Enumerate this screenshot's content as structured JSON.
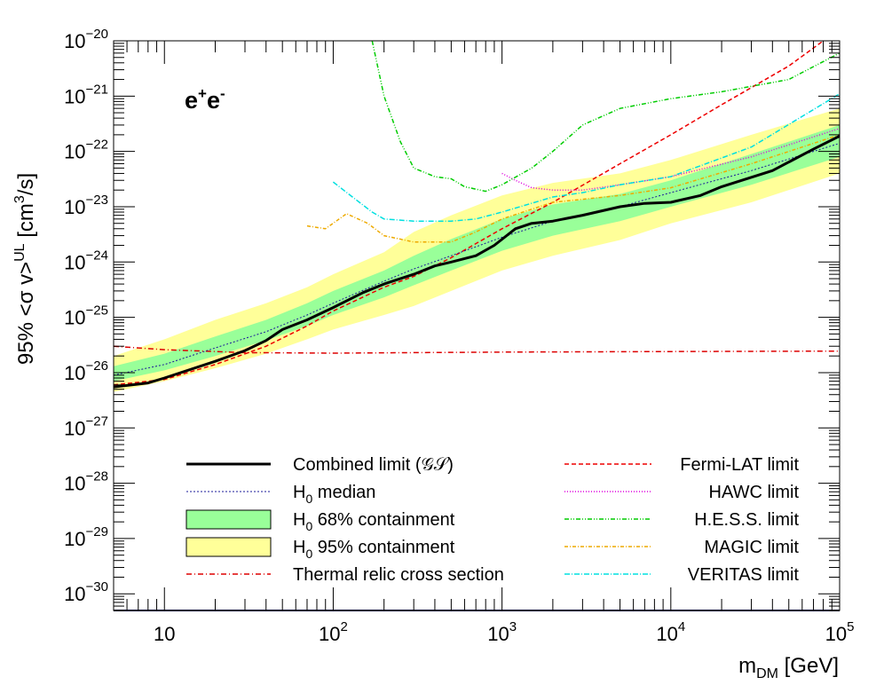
{
  "chart_data": {
    "type": "line",
    "channel_label": {
      "base": "e",
      "sup1": "+",
      "base2": "e",
      "sup2": "-"
    },
    "xlabel": {
      "main": "m",
      "sub": "DM",
      "unit": " [GeV]"
    },
    "ylabel": {
      "prefix": "95% <σ v>",
      "sup": "UL",
      "unit": " [cm",
      "unit_sup": "3",
      "unit_end": "/s]"
    },
    "x_scale": "log",
    "y_scale": "log",
    "xlim": [
      5,
      100000
    ],
    "ylim": [
      5e-31,
      1e-20
    ],
    "x_ticks": [
      {
        "value": 10,
        "base": "10",
        "exp": ""
      },
      {
        "value": 100,
        "base": "10",
        "exp": "2"
      },
      {
        "value": 1000,
        "base": "10",
        "exp": "3"
      },
      {
        "value": 10000,
        "base": "10",
        "exp": "4"
      },
      {
        "value": 100000,
        "base": "10",
        "exp": "5"
      }
    ],
    "y_ticks": [
      {
        "value": 1e-20,
        "base": "10",
        "exp": "−20"
      },
      {
        "value": 1e-21,
        "base": "10",
        "exp": "−21"
      },
      {
        "value": 1e-22,
        "base": "10",
        "exp": "−22"
      },
      {
        "value": 1e-23,
        "base": "10",
        "exp": "−23"
      },
      {
        "value": 1e-24,
        "base": "10",
        "exp": "−24"
      },
      {
        "value": 1e-25,
        "base": "10",
        "exp": "−25"
      },
      {
        "value": 1e-26,
        "base": "10",
        "exp": "−26"
      },
      {
        "value": 1e-27,
        "base": "10",
        "exp": "−27"
      },
      {
        "value": 1e-28,
        "base": "10",
        "exp": "−28"
      },
      {
        "value": 1e-29,
        "base": "10",
        "exp": "−29"
      },
      {
        "value": 1e-30,
        "base": "10",
        "exp": "−30"
      }
    ],
    "bands": [
      {
        "name": "H0 95% containment",
        "color": "#ffff99",
        "x": [
          5,
          10,
          20,
          40,
          70,
          100,
          200,
          300,
          500,
          1000,
          2000,
          5000,
          10000,
          30000,
          100000
        ],
        "lower": [
          4.5e-27,
          7e-27,
          1.2e-26,
          2.2e-26,
          4e-26,
          6e-26,
          1.1e-25,
          1.6e-25,
          3e-25,
          7e-25,
          1.3e-24,
          2.5e-24,
          5e-24,
          1.2e-23,
          4e-23
        ],
        "upper": [
          2e-26,
          4e-26,
          9e-26,
          1.8e-25,
          3.5e-25,
          6e-25,
          1.5e-24,
          3.5e-24,
          7e-24,
          1.6e-23,
          2.7e-23,
          4e-23,
          7e-23,
          2e-22,
          6e-22
        ]
      },
      {
        "name": "H0 68% containment",
        "color": "#99ff99",
        "x": [
          5,
          10,
          20,
          40,
          70,
          100,
          200,
          300,
          500,
          1000,
          2000,
          5000,
          10000,
          30000,
          100000
        ],
        "lower": [
          7e-27,
          1.1e-26,
          2e-26,
          3.8e-26,
          7e-26,
          1.1e-25,
          2.3e-25,
          3.8e-25,
          7e-25,
          1.6e-24,
          3e-24,
          5.5e-24,
          1e-23,
          2.5e-23,
          8e-23
        ],
        "upper": [
          1.3e-26,
          2.2e-26,
          4.5e-26,
          9e-26,
          1.8e-25,
          3e-25,
          7e-25,
          1.3e-24,
          2.6e-24,
          6e-24,
          1.1e-23,
          1.7e-23,
          3e-23,
          9e-23,
          3e-22
        ]
      }
    ],
    "series": [
      {
        "name": "Thermal relic cross section",
        "color": "#dd0000",
        "dash": "6,3,1,3",
        "width": 1.5,
        "x": [
          5,
          10,
          30,
          100,
          1000,
          10000,
          100000
        ],
        "y": [
          3e-26,
          2.6e-26,
          2.3e-26,
          2.25e-26,
          2.35e-26,
          2.4e-26,
          2.45e-26
        ]
      },
      {
        "name": "Fermi-LAT limit",
        "color": "#ee0000",
        "dash": "5,3",
        "width": 1.5,
        "x": [
          5,
          10,
          20,
          40,
          70,
          100,
          200,
          300,
          500,
          1000,
          2000,
          5000,
          10000,
          20000,
          50000,
          80000
        ],
        "y": [
          6e-27,
          7.5e-27,
          1.4e-26,
          3e-26,
          7e-26,
          1.3e-25,
          3.5e-25,
          5.5e-25,
          1.2e-24,
          4e-24,
          1.2e-23,
          6e-23,
          2e-22,
          7e-22,
          3.5e-21,
          1e-20
        ]
      },
      {
        "name": "HAWC limit",
        "color": "#dd00dd",
        "dash": "1,2",
        "width": 1.5,
        "x": [
          1000,
          1200,
          1500,
          2000,
          3000,
          5000,
          10000,
          30000,
          100000
        ],
        "y": [
          4e-23,
          3e-23,
          2.2e-23,
          2e-23,
          2e-23,
          2.5e-23,
          3.5e-23,
          8e-23,
          2.6e-22
        ]
      },
      {
        "name": "H.E.S.S. limit",
        "color": "#00cc00",
        "dash": "5,2,1,2,1,2",
        "width": 1.5,
        "x": [
          170,
          200,
          250,
          300,
          400,
          500,
          600,
          800,
          1000,
          1500,
          2000,
          3000,
          5000,
          10000,
          20000,
          50000,
          100000
        ],
        "y": [
          1e-20,
          1e-21,
          1.5e-22,
          5e-23,
          3.5e-23,
          3.2e-23,
          2.3e-23,
          1.9e-23,
          2.5e-23,
          5e-23,
          1e-22,
          3e-22,
          6e-22,
          9e-22,
          1.2e-21,
          2e-21,
          6e-21
        ]
      },
      {
        "name": "MAGIC limit",
        "color": "#eeaa00",
        "dash": "4,2,1,2",
        "width": 1.5,
        "x": [
          70,
          90,
          120,
          160,
          200,
          300,
          500,
          700,
          1000,
          2000,
          5000,
          10000,
          30000,
          100000
        ],
        "y": [
          4.5e-24,
          4e-24,
          7.5e-24,
          5e-24,
          3e-24,
          2.3e-24,
          2.3e-24,
          3.5e-24,
          6e-24,
          1.2e-23,
          1.6e-23,
          2.2e-23,
          6e-23,
          2e-22
        ]
      },
      {
        "name": "VERITAS limit",
        "color": "#00e0e0",
        "dash": "6,2,1,2",
        "width": 1.5,
        "x": [
          100,
          130,
          170,
          200,
          300,
          500,
          700,
          1000,
          2000,
          3000,
          5000,
          10000,
          30000,
          100000
        ],
        "y": [
          2.8e-23,
          1.5e-23,
          8e-24,
          6e-24,
          5.5e-24,
          5.5e-24,
          6e-24,
          8e-24,
          1.5e-23,
          1.8e-23,
          2.5e-23,
          3.5e-23,
          1.2e-22,
          1.1e-21
        ]
      },
      {
        "name": "H0 median",
        "color": "#1a1a99",
        "dash": "2,2",
        "width": 1,
        "x": [
          5,
          10,
          20,
          40,
          70,
          100,
          200,
          300,
          500,
          1000,
          2000,
          5000,
          10000,
          30000,
          100000
        ],
        "y": [
          9e-27,
          1.4e-26,
          2.8e-26,
          5.5e-26,
          1.1e-25,
          1.8e-25,
          4.5e-25,
          7.5e-25,
          1.3e-24,
          2.8e-24,
          5.5e-24,
          1e-23,
          1.8e-23,
          4.5e-23,
          1.4e-22
        ]
      },
      {
        "name": "Combined limit",
        "color": "#000000",
        "dash": "",
        "width": 3,
        "x": [
          5,
          8,
          10,
          20,
          30,
          40,
          50,
          70,
          100,
          150,
          200,
          300,
          400,
          500,
          700,
          900,
          1200,
          1500,
          2000,
          3000,
          5000,
          7000,
          10000,
          15000,
          20000,
          40000,
          70000,
          100000
        ],
        "y": [
          5.5e-27,
          6.5e-27,
          8e-27,
          1.6e-26,
          2.5e-26,
          3.8e-26,
          6e-26,
          9e-26,
          1.5e-25,
          2.8e-25,
          4e-25,
          6e-25,
          8.5e-25,
          1e-24,
          1.3e-24,
          2e-24,
          4e-24,
          5e-24,
          5.5e-24,
          7e-24,
          1e-23,
          1.15e-23,
          1.2e-23,
          1.6e-23,
          2.3e-23,
          4.5e-23,
          1.1e-22,
          1.9e-22
        ]
      }
    ],
    "legend": {
      "left": [
        {
          "label": "Combined limit (𝒢𝒮)",
          "kind": "line",
          "ref": "Combined limit"
        },
        {
          "label": "H",
          "sub": "0",
          "tail": " median",
          "kind": "line",
          "ref": "H0 median"
        },
        {
          "label": "H",
          "sub": "0",
          "tail": " 68% containment",
          "kind": "box",
          "ref": "H0 68% containment"
        },
        {
          "label": "H",
          "sub": "0",
          "tail": " 95% containment",
          "kind": "box",
          "ref": "H0 95% containment"
        },
        {
          "label": "Thermal relic cross section",
          "kind": "line",
          "ref": "Thermal relic cross section"
        }
      ],
      "right": [
        {
          "label": "Fermi-LAT limit",
          "kind": "line",
          "ref": "Fermi-LAT limit"
        },
        {
          "label": "HAWC limit",
          "kind": "line",
          "ref": "HAWC limit"
        },
        {
          "label": "H.E.S.S. limit",
          "kind": "line",
          "ref": "H.E.S.S. limit"
        },
        {
          "label": "MAGIC limit",
          "kind": "line",
          "ref": "MAGIC limit"
        },
        {
          "label": "VERITAS limit",
          "kind": "line",
          "ref": "VERITAS limit"
        }
      ]
    }
  }
}
